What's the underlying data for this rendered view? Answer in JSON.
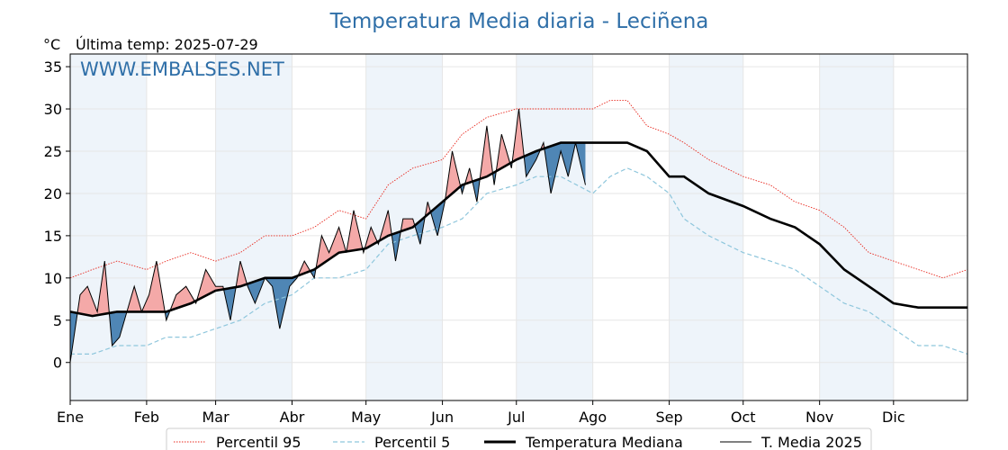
{
  "title": "Temperatura Media diaria - Leciñena",
  "unit_label": "°C",
  "subtitle": "Última temp: 2025-07-29",
  "watermark": "WWW.EMBALSES.NET",
  "colors": {
    "title": "#2f6fa8",
    "p95": "#e8281e",
    "p5": "#8ec6dc",
    "median": "#000000",
    "year": "#000000",
    "above_fill": "#f4a9a8",
    "below_fill": "#4f86b5",
    "month_band": "#eef4fa",
    "grid": "#e6e6e6"
  },
  "legend": {
    "p95": "Percentil 95",
    "p5": "Percentil 5",
    "median": "Temperatura Mediana",
    "year": "T. Media 2025"
  },
  "chart_data": {
    "type": "line",
    "title": "Temperatura Media diaria - Leciñena",
    "ylabel": "°C",
    "xlabel": "",
    "x_unit": "day of year",
    "xlim": [
      1,
      365
    ],
    "ylim": [
      -4.5,
      36.5
    ],
    "yticks": [
      0,
      5,
      10,
      15,
      20,
      25,
      30,
      35
    ],
    "month_ticks": [
      {
        "label": "Ene",
        "day": 1
      },
      {
        "label": "Feb",
        "day": 32
      },
      {
        "label": "Mar",
        "day": 60
      },
      {
        "label": "Abr",
        "day": 91
      },
      {
        "label": "May",
        "day": 121
      },
      {
        "label": "Jun",
        "day": 152
      },
      {
        "label": "Jul",
        "day": 182
      },
      {
        "label": "Ago",
        "day": 213
      },
      {
        "label": "Sep",
        "day": 244
      },
      {
        "label": "Oct",
        "day": 274
      },
      {
        "label": "Nov",
        "day": 305
      },
      {
        "label": "Dic",
        "day": 335
      }
    ],
    "grid": true,
    "legend_position": "bottom",
    "series": [
      {
        "name": "Percentil 95",
        "style": "dotted-red",
        "x": [
          1,
          10,
          20,
          32,
          40,
          50,
          60,
          70,
          80,
          91,
          100,
          110,
          121,
          130,
          140,
          152,
          160,
          170,
          182,
          190,
          200,
          213,
          220,
          227,
          235,
          244,
          250,
          260,
          274,
          285,
          295,
          305,
          315,
          325,
          335,
          345,
          355,
          365
        ],
        "values": [
          10,
          11,
          12,
          11,
          12,
          13,
          12,
          13,
          15,
          15,
          16,
          18,
          17,
          21,
          23,
          24,
          27,
          29,
          30,
          30,
          30,
          30,
          31,
          31,
          28,
          27,
          26,
          24,
          22,
          21,
          19,
          18,
          16,
          13,
          12,
          11,
          10,
          11
        ]
      },
      {
        "name": "Percentil 5",
        "style": "dashed-lightblue",
        "x": [
          1,
          10,
          20,
          32,
          40,
          50,
          60,
          70,
          80,
          91,
          100,
          110,
          121,
          130,
          140,
          152,
          160,
          170,
          182,
          190,
          200,
          213,
          220,
          227,
          235,
          244,
          250,
          260,
          274,
          285,
          295,
          305,
          315,
          325,
          335,
          345,
          355,
          365
        ],
        "values": [
          1,
          1,
          2,
          2,
          3,
          3,
          4,
          5,
          7,
          8,
          10,
          10,
          11,
          14,
          15,
          16,
          17,
          20,
          21,
          22,
          22,
          20,
          22,
          23,
          22,
          20,
          17,
          15,
          13,
          12,
          11,
          9,
          7,
          6,
          4,
          2,
          2,
          1
        ]
      },
      {
        "name": "Temperatura Mediana",
        "style": "thick-black",
        "x": [
          1,
          10,
          20,
          32,
          40,
          50,
          60,
          70,
          80,
          91,
          100,
          110,
          121,
          130,
          140,
          152,
          160,
          170,
          182,
          190,
          200,
          213,
          220,
          227,
          235,
          244,
          250,
          260,
          274,
          285,
          295,
          305,
          315,
          325,
          335,
          345,
          355,
          365
        ],
        "values": [
          6,
          5.5,
          6,
          6,
          6,
          7,
          8.5,
          9,
          10,
          10,
          11,
          13,
          13.5,
          15,
          16,
          19,
          21,
          22,
          24,
          25,
          26,
          26,
          26,
          26,
          25,
          22,
          22,
          20,
          18.5,
          17,
          16,
          14,
          11,
          9,
          7,
          6.5,
          6.5,
          6.5
        ]
      },
      {
        "name": "T. Media 2025",
        "style": "thin-black",
        "x": [
          1,
          5,
          8,
          12,
          15,
          18,
          21,
          24,
          27,
          30,
          33,
          36,
          40,
          44,
          48,
          52,
          56,
          60,
          63,
          66,
          70,
          73,
          76,
          80,
          83,
          86,
          90,
          93,
          96,
          100,
          103,
          106,
          110,
          113,
          116,
          120,
          123,
          126,
          130,
          133,
          136,
          140,
          143,
          146,
          150,
          153,
          156,
          160,
          163,
          166,
          170,
          173,
          176,
          180,
          183,
          186,
          190,
          193,
          196,
          200,
          203,
          206,
          210
        ],
        "values": [
          0,
          8,
          9,
          6,
          12,
          2,
          3,
          6,
          9,
          6,
          8,
          12,
          5,
          8,
          9,
          7,
          11,
          9,
          9,
          5,
          12,
          9,
          7,
          10,
          9,
          4,
          9,
          10,
          12,
          10,
          15,
          13,
          16,
          13,
          18,
          13,
          16,
          14,
          18,
          12,
          17,
          17,
          14,
          19,
          15,
          19,
          25,
          20,
          23,
          19,
          28,
          21,
          27,
          23,
          30,
          22,
          24,
          26,
          20,
          25,
          22,
          26,
          21
        ]
      }
    ]
  }
}
